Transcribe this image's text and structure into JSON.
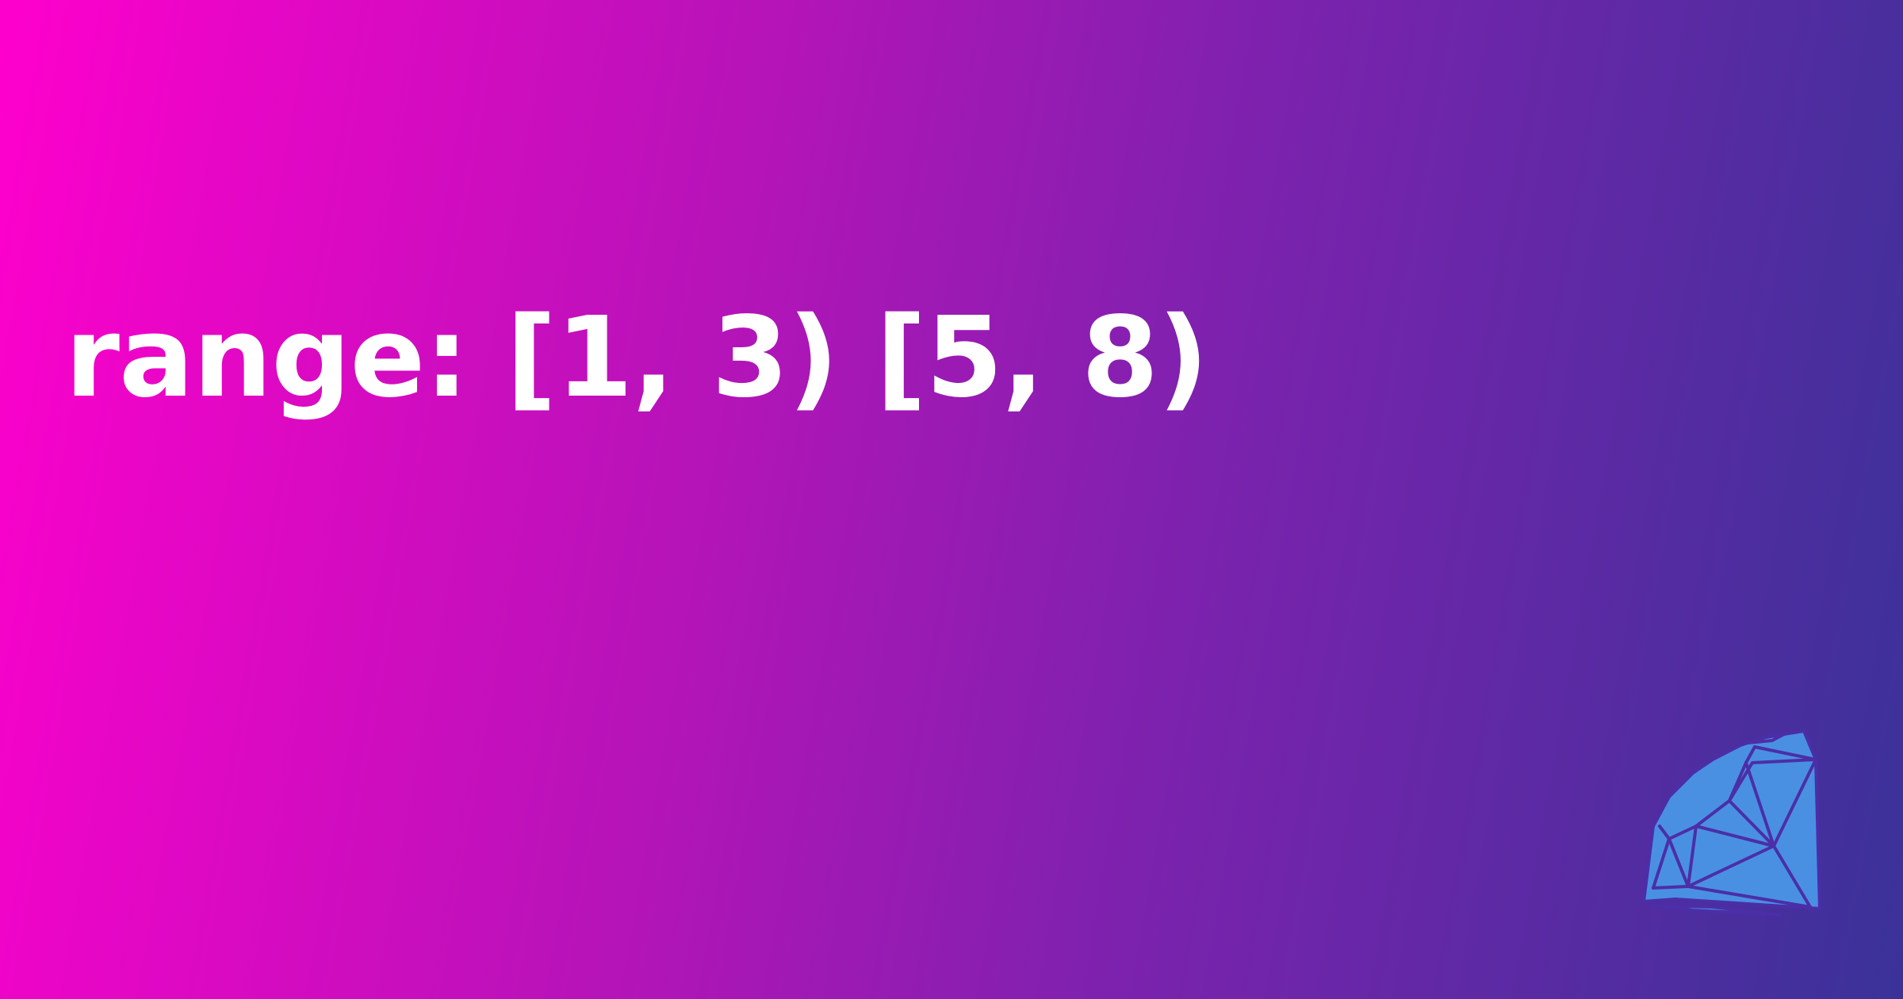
{
  "headline": "range: [1, 3) [5, 8)",
  "logo": {
    "icon": "ruby-gem-icon",
    "color": "#4a90e2",
    "line_color": "#4b2ea8"
  },
  "background": {
    "gradient_start": "#ff00cc",
    "gradient_end": "#3a3299"
  }
}
